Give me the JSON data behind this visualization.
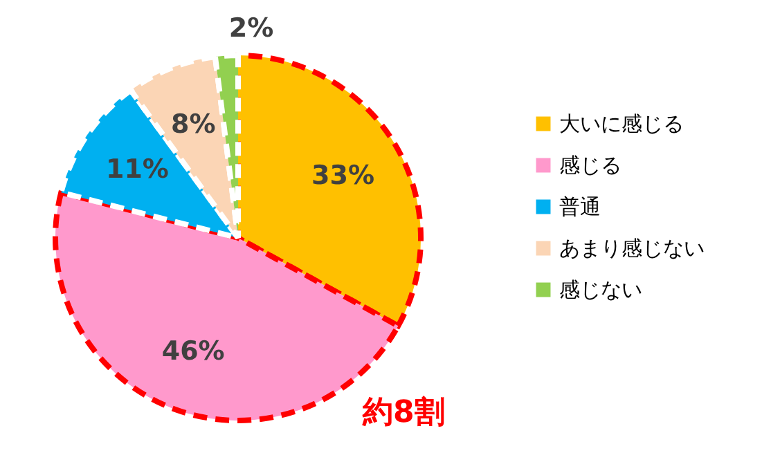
{
  "chart_data": {
    "type": "pie",
    "categories": [
      "大いに感じる",
      "感じる",
      "普通",
      "あまり感じない",
      "感じない"
    ],
    "values": [
      33,
      46,
      11,
      8,
      2
    ],
    "colors": [
      "#ffc000",
      "#ff99cc",
      "#00b0f0",
      "#fbd5b5",
      "#92d050"
    ],
    "value_labels": [
      "33%",
      "46%",
      "11%",
      "8%",
      "2%"
    ],
    "legend": "right",
    "annotations": [
      "約8割"
    ]
  }
}
